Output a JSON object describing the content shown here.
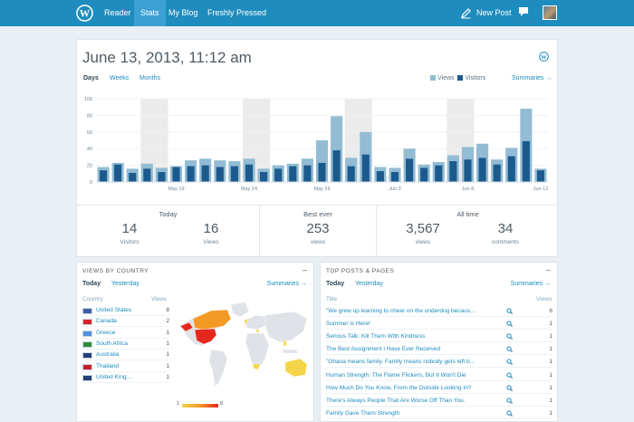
{
  "colors": {
    "brand": "#1e8cbe",
    "views": "#92bcd4",
    "visitors": "#1c5a8d",
    "weekend": "#ebebeb"
  },
  "nav": {
    "items": [
      {
        "label": "Reader",
        "active": false
      },
      {
        "label": "Stats",
        "active": true
      },
      {
        "label": "My Blog",
        "active": false
      },
      {
        "label": "Freshly Pressed",
        "active": false
      }
    ],
    "new_post": "New Post",
    "icons": [
      "wordpress-logo-icon",
      "pencil-icon",
      "notifications-icon",
      "avatar"
    ]
  },
  "main": {
    "date_title": "June 13, 2013, 11:12 am",
    "tabs": [
      {
        "label": "Days",
        "active": true
      },
      {
        "label": "Weeks",
        "active": false
      },
      {
        "label": "Months",
        "active": false
      }
    ],
    "legend": {
      "views": "Views",
      "visitors": "Visitors"
    },
    "summaries": "Summaries →"
  },
  "chart_data": {
    "type": "bar",
    "y_ticks": [
      "100",
      "80",
      "60",
      "40",
      "20",
      "0"
    ],
    "ylim": [
      0,
      100
    ],
    "x_tick_labels": [
      {
        "index": 5,
        "label": "May 19"
      },
      {
        "index": 10,
        "label": "May 24"
      },
      {
        "index": 15,
        "label": "May 29"
      },
      {
        "index": 20,
        "label": "Jun 3"
      },
      {
        "index": 25,
        "label": "Jun 8"
      },
      {
        "index": 30,
        "label": "Jun 13"
      }
    ],
    "weekend_shade_groups": [
      [
        3,
        4
      ],
      [
        10,
        11
      ],
      [
        17,
        18
      ],
      [
        24,
        25
      ]
    ],
    "series": [
      {
        "name": "Views",
        "values": [
          18,
          23,
          16,
          22,
          17,
          19,
          26,
          28,
          26,
          25,
          28,
          16,
          20,
          22,
          28,
          50,
          79,
          29,
          60,
          18,
          17,
          40,
          21,
          24,
          32,
          42,
          46,
          27,
          41,
          88,
          16
        ]
      },
      {
        "name": "Visitors",
        "values": [
          14,
          21,
          11,
          16,
          12,
          18,
          19,
          20,
          18,
          19,
          21,
          12,
          16,
          19,
          20,
          23,
          38,
          19,
          33,
          13,
          12,
          28,
          17,
          20,
          25,
          27,
          29,
          21,
          31,
          49,
          14
        ]
      }
    ]
  },
  "summary": {
    "today": {
      "title": "Today",
      "visitors": "14",
      "visitors_label": "Visitors",
      "views": "16",
      "views_label": "Views"
    },
    "best": {
      "title": "Best ever",
      "views": "253",
      "views_label": "views"
    },
    "all_time": {
      "title": "All time",
      "views": "3,567",
      "views_label": "views",
      "comments": "34",
      "comments_label": "comments"
    }
  },
  "countries": {
    "heading": "VIEWS BY COUNTRY",
    "dash": "–",
    "tabs": [
      "Today",
      "Yesterday"
    ],
    "summaries": "Summaries →",
    "col_country": "Country",
    "col_views": "Views",
    "rows": [
      {
        "name": "United States",
        "views": "8",
        "flag": "us"
      },
      {
        "name": "Canada",
        "views": "2",
        "flag": "ca"
      },
      {
        "name": "Greece",
        "views": "1",
        "flag": "gr"
      },
      {
        "name": "South Africa",
        "views": "1",
        "flag": "za"
      },
      {
        "name": "Australia",
        "views": "1",
        "flag": "au"
      },
      {
        "name": "Thailand",
        "views": "1",
        "flag": "th"
      },
      {
        "name": "United King...",
        "views": "1",
        "flag": "gb"
      }
    ],
    "scale_min": "1",
    "scale_max": "8"
  },
  "posts": {
    "heading": "TOP POSTS & PAGES",
    "dash": "–",
    "tabs": [
      "Today",
      "Yesterday"
    ],
    "summaries": "Summaries →",
    "col_title": "Title",
    "col_views": "Views",
    "rows": [
      {
        "title": "\"We grew up learning to cheer on the underdog becaus...",
        "views": "6"
      },
      {
        "title": "Summer is Here!",
        "views": "1"
      },
      {
        "title": "Serious Talk: Kill Them With Kindness",
        "views": "1"
      },
      {
        "title": "The Best Assignment I Have Ever Received",
        "views": "1"
      },
      {
        "title": "\"Ohana means family. Family means nobody gets left b...",
        "views": "1"
      },
      {
        "title": "Human Strength: The Flame Flickers, But It Won't Die",
        "views": "1"
      },
      {
        "title": "How Much Do You Know, From the Outside Looking In?",
        "views": "1"
      },
      {
        "title": "There's Always People That Are Worse Off Than You.",
        "views": "1"
      },
      {
        "title": "Family Gave Them Strength",
        "views": "1"
      }
    ]
  }
}
